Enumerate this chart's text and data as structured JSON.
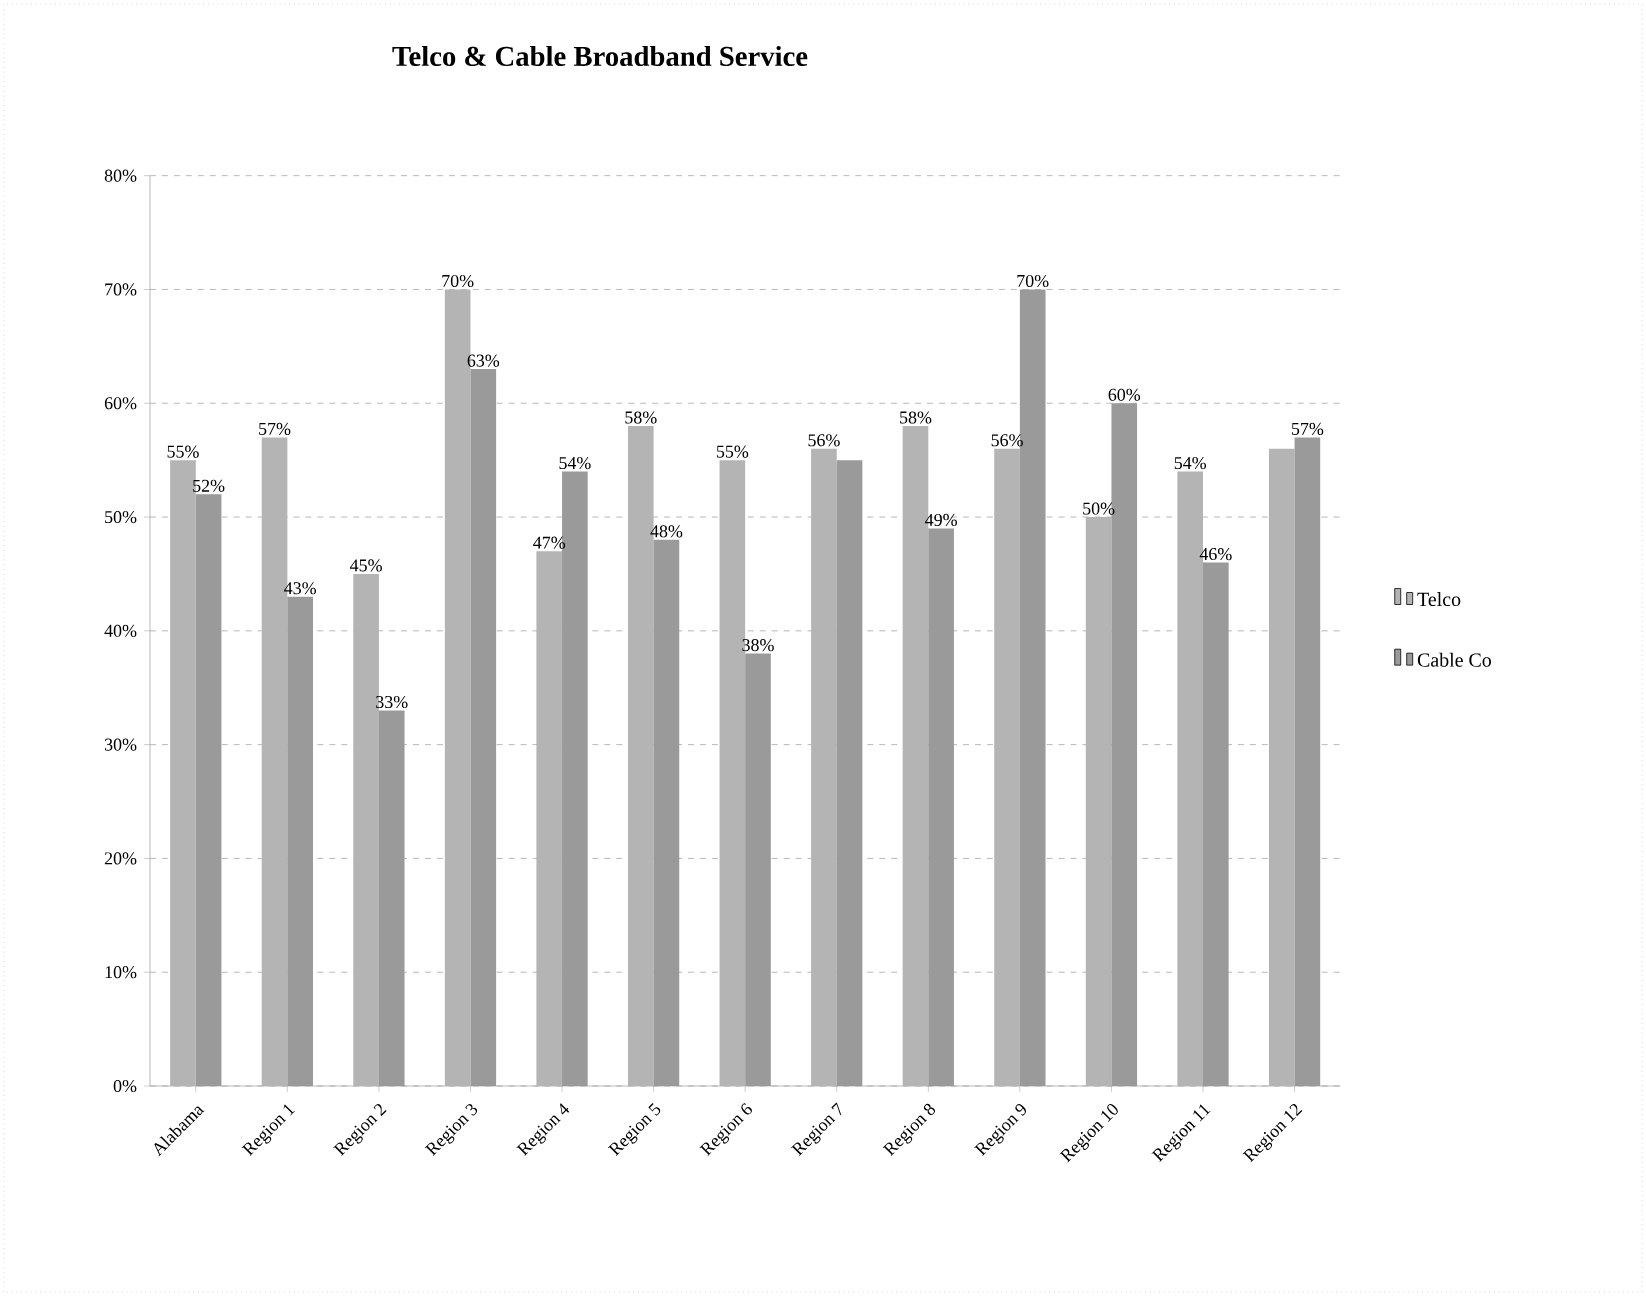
{
  "chart_data": {
    "type": "bar",
    "title": "Telco & Cable Broadband Service",
    "categories": [
      "Alabama",
      "Region 1",
      "Region 2",
      "Region 3",
      "Region 4",
      "Region 5",
      "Region 6",
      "Region 7",
      "Region 8",
      "Region 9",
      "Region 10",
      "Region 11",
      "Region 12"
    ],
    "series": [
      {
        "name": "Telco",
        "color": "#b4b4b4",
        "values": [
          55,
          57,
          45,
          70,
          47,
          58,
          55,
          56,
          58,
          56,
          50,
          54,
          56
        ],
        "value_labels": [
          "55%",
          "57%",
          "45%",
          "70%",
          "47%",
          "58%",
          "55%",
          "56%",
          "58%",
          "56%",
          "50%",
          "54%",
          null
        ]
      },
      {
        "name": "Cable Co",
        "color": "#9a9a9a",
        "values": [
          52,
          43,
          33,
          63,
          54,
          48,
          38,
          55,
          49,
          70,
          60,
          46,
          57
        ],
        "value_labels": [
          "52%",
          "43%",
          "33%",
          "63%",
          "54%",
          "48%",
          "38%",
          null,
          "49%",
          "70%",
          "60%",
          "46%",
          "57%"
        ]
      }
    ],
    "ylim": [
      0,
      80
    ],
    "yticks": [
      {
        "value": 0,
        "label": "0%"
      },
      {
        "value": 10,
        "label": "10%"
      },
      {
        "value": 20,
        "label": "20%"
      },
      {
        "value": 30,
        "label": "30%"
      },
      {
        "value": 40,
        "label": "40%"
      },
      {
        "value": 50,
        "label": "50%"
      },
      {
        "value": 60,
        "label": "60%"
      },
      {
        "value": 70,
        "label": "70%"
      },
      {
        "value": 80,
        "label": "80%"
      }
    ],
    "grid": "y",
    "legend": "right"
  }
}
